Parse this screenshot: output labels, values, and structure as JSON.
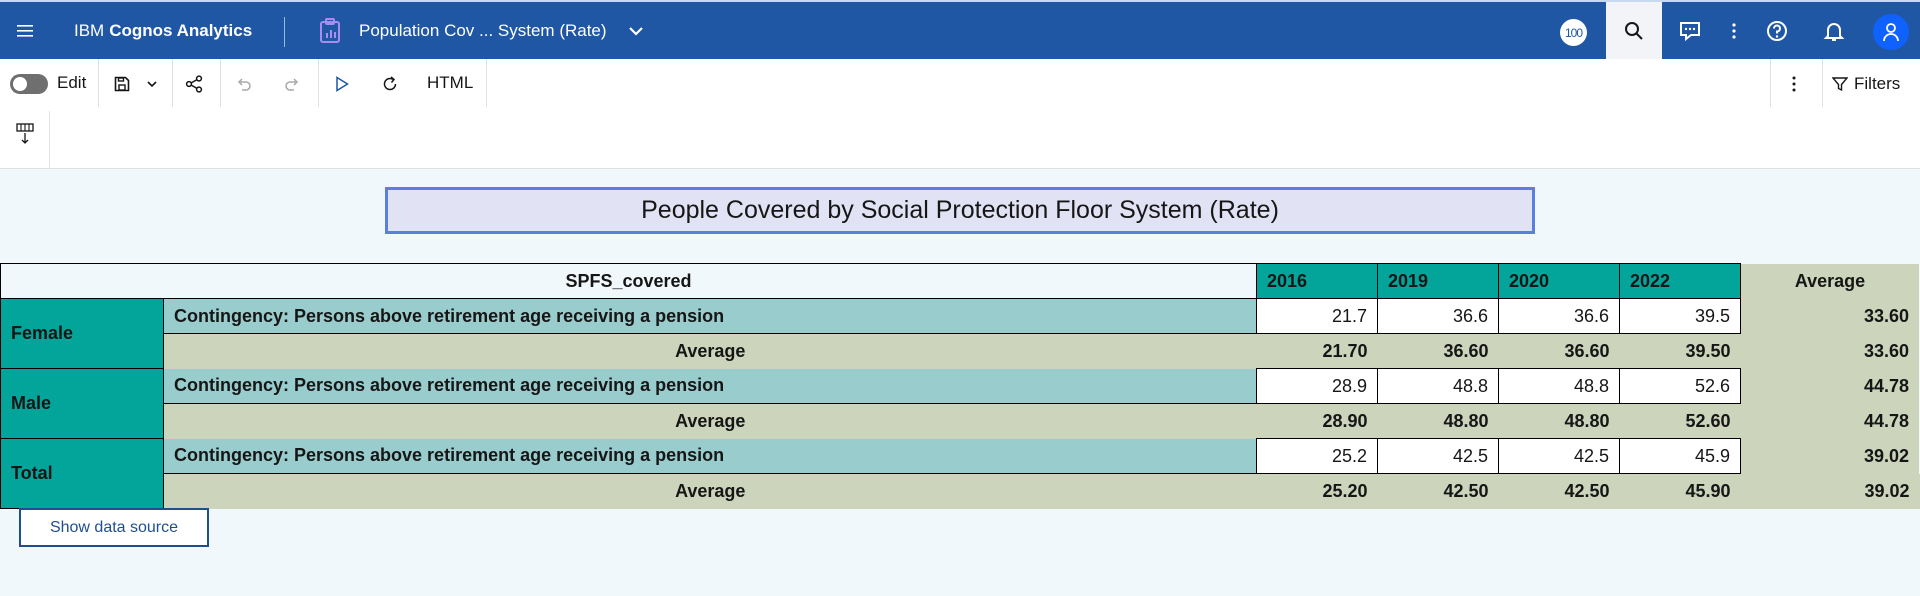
{
  "header": {
    "brand_prefix": "IBM",
    "brand_bold": "Cognos Analytics",
    "report_title": "Population Cov ... System (Rate)",
    "notification_badge": "100",
    "colors": {
      "bar": "#1f57a4",
      "avatar": "#0f62fe"
    }
  },
  "toolbar": {
    "edit_label": "Edit",
    "edit_mode_on": false,
    "output_format": "HTML",
    "filters_label": "Filters"
  },
  "report": {
    "title": "People Covered by Social Protection Floor System (Rate)",
    "corner_label": "SPFS_covered",
    "average_header": "Average",
    "years": [
      "2016",
      "2019",
      "2020",
      "2022"
    ],
    "groups": [
      {
        "name": "Female",
        "row_label": "Contingency: Persons above retirement age receiving a pension",
        "values": [
          "21.7",
          "36.6",
          "36.6",
          "39.5"
        ],
        "row_avg": "33.60",
        "avg_label": "Average",
        "col_avgs": [
          "21.70",
          "36.60",
          "36.60",
          "39.50"
        ],
        "total_avg": "33.60"
      },
      {
        "name": "Male",
        "row_label": "Contingency: Persons above retirement age receiving a pension",
        "values": [
          "28.9",
          "48.8",
          "48.8",
          "52.6"
        ],
        "row_avg": "44.78",
        "avg_label": "Average",
        "col_avgs": [
          "28.90",
          "48.80",
          "48.80",
          "52.60"
        ],
        "total_avg": "44.78"
      },
      {
        "name": "Total",
        "row_label": "Contingency: Persons above retirement age receiving a pension",
        "values": [
          "25.2",
          "42.5",
          "42.5",
          "45.9"
        ],
        "row_avg": "39.02",
        "avg_label": "Average",
        "col_avgs": [
          "25.20",
          "42.50",
          "42.50",
          "45.90"
        ],
        "total_avg": "39.02"
      }
    ],
    "colors": {
      "teal": "#03a59a",
      "light_teal": "#99cccc",
      "olive": "#ccd5bb",
      "title_bg": "#e2e2f5"
    }
  },
  "show_source_label": "Show data source"
}
